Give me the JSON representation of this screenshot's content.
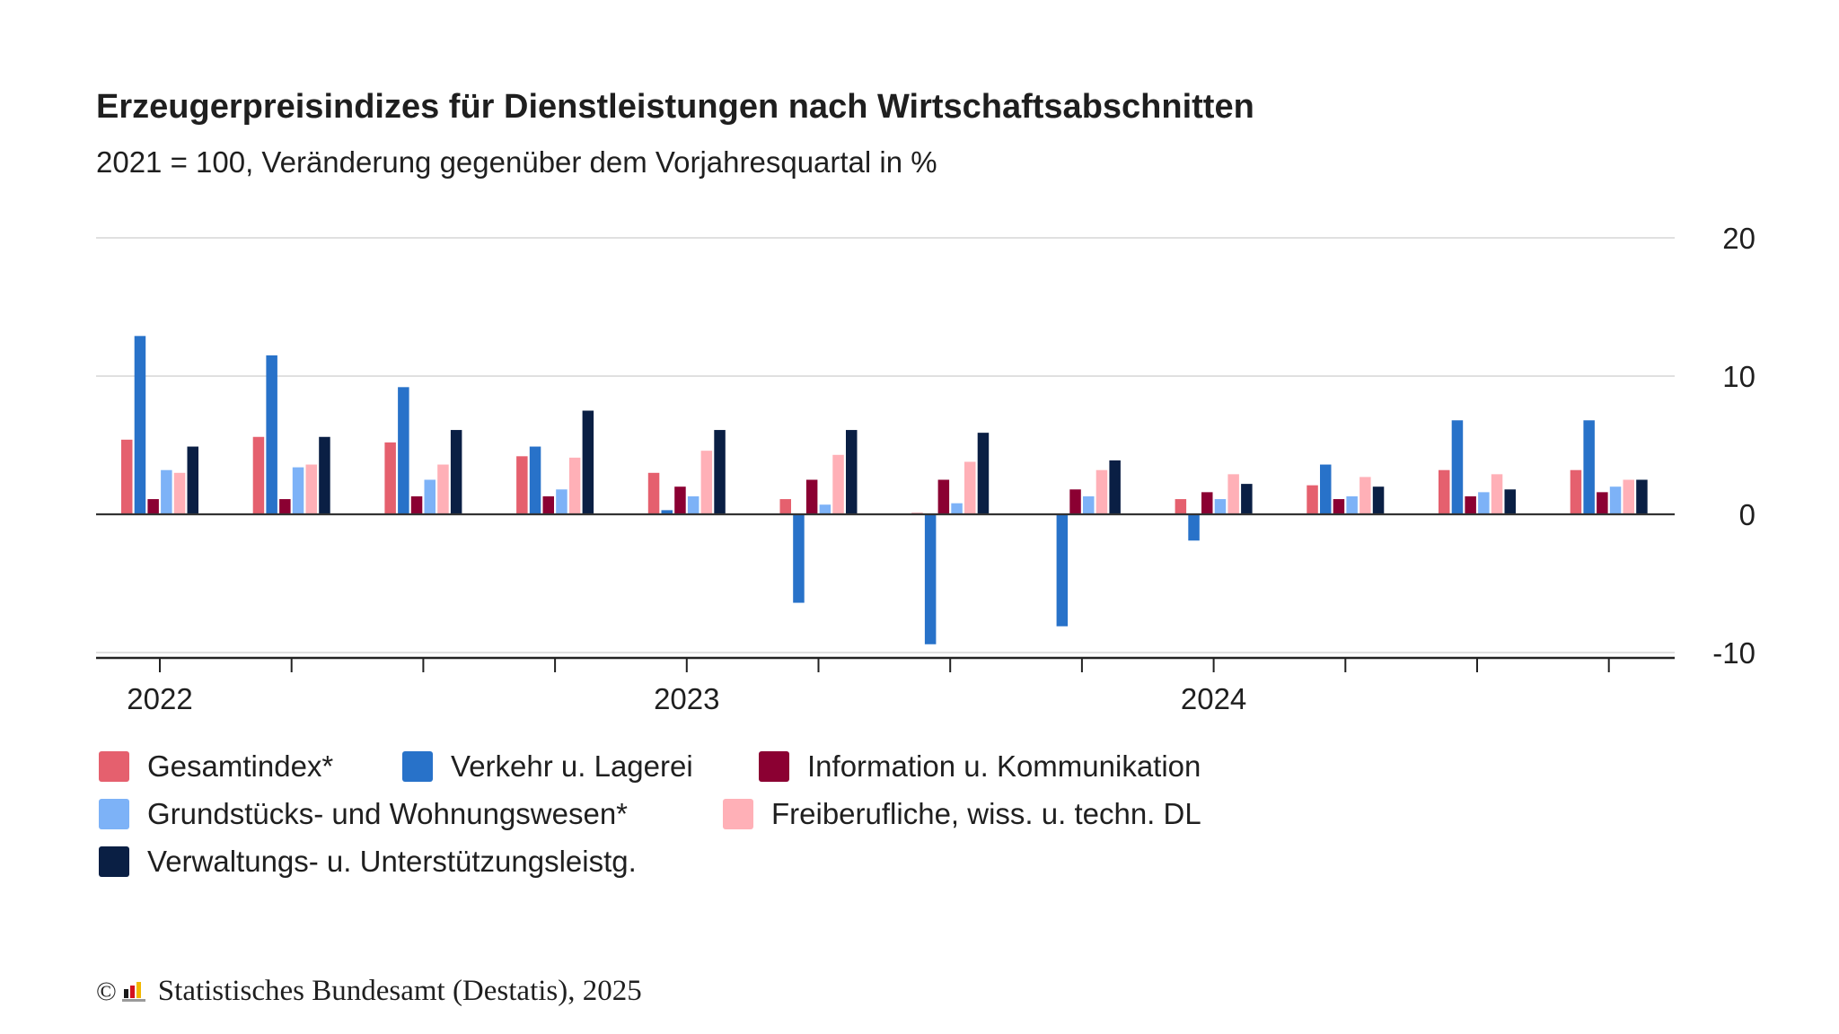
{
  "title": "Erzeugerpreisindizes für Dienstleistungen nach Wirtschaftsabschnitten",
  "subtitle": "2021 = 100, Veränderung gegenüber dem Vorjahresquartal in %",
  "footer": {
    "copyright_symbol": "©",
    "text": "Statistisches Bundesamt (Destatis), 2025"
  },
  "chart_data": {
    "type": "bar",
    "title": "Erzeugerpreisindizes für Dienstleistungen nach Wirtschaftsabschnitten",
    "subtitle": "2021 = 100, Veränderung gegenüber dem Vorjahresquartal in %",
    "categories": [
      "2022 Q1",
      "2022 Q2",
      "2022 Q3",
      "2022 Q4",
      "2023 Q1",
      "2023 Q2",
      "2023 Q3",
      "2023 Q4",
      "2024 Q1",
      "2024 Q2",
      "2024 Q3",
      "2024 Q4"
    ],
    "x_tick_labels": [
      {
        "label": "2022",
        "index": 0
      },
      {
        "label": "2023",
        "index": 4
      },
      {
        "label": "2024",
        "index": 8
      }
    ],
    "ylim": [
      -10,
      20
    ],
    "y_ticks": [
      20,
      10,
      0,
      -10
    ],
    "y_axis_position": "right",
    "grid": true,
    "legend_position": "bottom",
    "series": [
      {
        "name": "Gesamtindex*",
        "color": "#e5606e",
        "values": [
          5.4,
          5.6,
          5.2,
          4.2,
          3.0,
          1.1,
          0.1,
          0.0,
          1.1,
          2.1,
          3.2,
          3.2
        ]
      },
      {
        "name": "Verkehr u. Lagerei",
        "color": "#2872c9",
        "values": [
          12.9,
          11.5,
          9.2,
          4.9,
          0.3,
          -6.4,
          -9.4,
          -8.1,
          -1.9,
          3.6,
          6.8,
          6.8
        ]
      },
      {
        "name": "Information u. Kommunikation",
        "color": "#8b0032",
        "values": [
          1.1,
          1.1,
          1.3,
          1.3,
          2.0,
          2.5,
          2.5,
          1.8,
          1.6,
          1.1,
          1.3,
          1.6
        ]
      },
      {
        "name": "Grundstücks- und Wohnungswesen*",
        "color": "#7db2f7",
        "values": [
          3.2,
          3.4,
          2.5,
          1.8,
          1.3,
          0.7,
          0.8,
          1.3,
          1.1,
          1.3,
          1.6,
          2.0
        ]
      },
      {
        "name": "Freiberufliche, wiss. u. techn. DL",
        "color": "#ffb0b7",
        "values": [
          3.0,
          3.6,
          3.6,
          4.1,
          4.6,
          4.3,
          3.8,
          3.2,
          2.9,
          2.7,
          2.9,
          2.5
        ]
      },
      {
        "name": "Verwaltungs- u. Unterstützungsleistg.",
        "color": "#0a1f44",
        "values": [
          4.9,
          5.6,
          6.1,
          7.5,
          6.1,
          6.1,
          5.9,
          3.9,
          2.2,
          2.0,
          1.8,
          2.5
        ]
      }
    ]
  }
}
